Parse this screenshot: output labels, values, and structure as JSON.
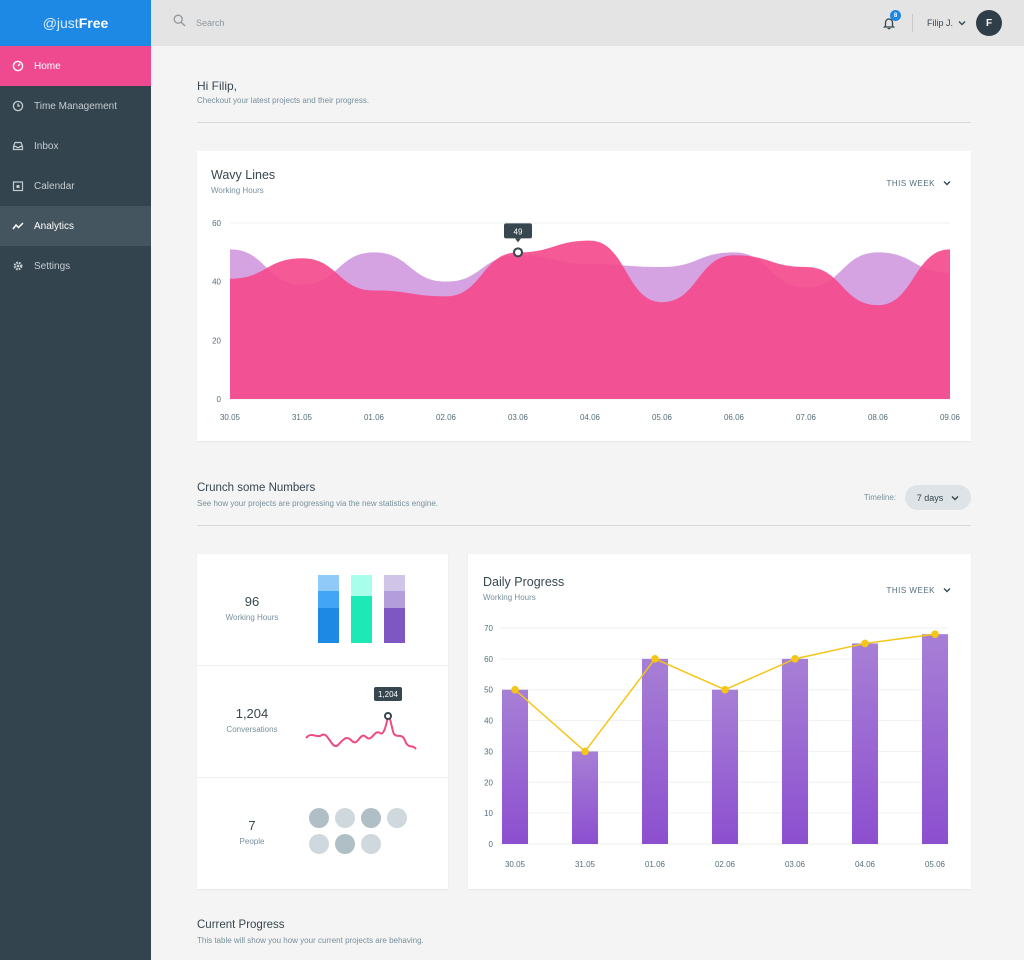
{
  "app": {
    "logo_prefix": "@just",
    "logo_bold": "Free"
  },
  "sidebar": {
    "items": [
      {
        "label": "Home",
        "icon": "dashboard-icon"
      },
      {
        "label": "Time Management",
        "icon": "clock-icon"
      },
      {
        "label": "Inbox",
        "icon": "inbox-icon"
      },
      {
        "label": "Calendar",
        "icon": "calendar-icon"
      },
      {
        "label": "Analytics",
        "icon": "trend-icon"
      },
      {
        "label": "Settings",
        "icon": "gear-icon"
      }
    ]
  },
  "topbar": {
    "search_placeholder": "Search",
    "notification_count": "8",
    "user_name": "Filip J.",
    "avatar_initial": "F"
  },
  "greeting": {
    "title": "Hi Filip,",
    "subtitle": "Checkout your latest projects and their progress."
  },
  "wavy": {
    "title": "Wavy Lines",
    "subtitle": "Working Hours",
    "period": "THIS WEEK",
    "tooltip": "49"
  },
  "crunch": {
    "title": "Crunch some Numbers",
    "subtitle": "See how your projects are progressing via the new statistics engine.",
    "timeline_label": "Timeline:",
    "timeline_value": "7 days"
  },
  "stats": {
    "hours_value": "96",
    "hours_label": "Working Hours",
    "conv_value": "1,204",
    "conv_label": "Conversations",
    "conv_tooltip": "1,204",
    "people_value": "7",
    "people_label": "People"
  },
  "daily": {
    "title": "Daily Progress",
    "subtitle": "Working Hours",
    "period": "THIS WEEK"
  },
  "current": {
    "title": "Current Progress",
    "subtitle": "This table will show you how your current projects are behaving."
  },
  "colors": {
    "pink": "#f5488b",
    "lilac": "#d49ee0",
    "purple": "#8c4fcf",
    "gold": "#f5c518",
    "blue": "#1e88e5"
  },
  "chart_data": [
    {
      "type": "area",
      "categories": [
        "30.05",
        "31.05",
        "01.06",
        "02.06",
        "03.06",
        "04.06",
        "05.06",
        "06.06",
        "07.06",
        "08.06",
        "09.06"
      ],
      "ylim": [
        0,
        60
      ],
      "yticks": [
        0,
        20,
        40,
        60
      ],
      "series": [
        {
          "values": [
            51,
            39,
            50,
            40,
            49,
            46,
            45,
            50,
            38,
            50,
            43
          ]
        },
        {
          "values": [
            41,
            48,
            37,
            35,
            50,
            54,
            33,
            49,
            45,
            32,
            51
          ]
        }
      ]
    },
    {
      "type": "bar",
      "categories": [
        "30.05",
        "31.05",
        "01.06",
        "02.06",
        "03.06",
        "04.06",
        "05.06"
      ],
      "ylim": [
        0,
        70
      ],
      "yticks": [
        0,
        10,
        20,
        30,
        40,
        50,
        60,
        70
      ],
      "series": [
        {
          "values": [
            50,
            30,
            60,
            50,
            60,
            65,
            68
          ]
        },
        {
          "values": [
            50,
            30,
            60,
            50,
            60,
            65,
            68
          ]
        }
      ]
    }
  ]
}
